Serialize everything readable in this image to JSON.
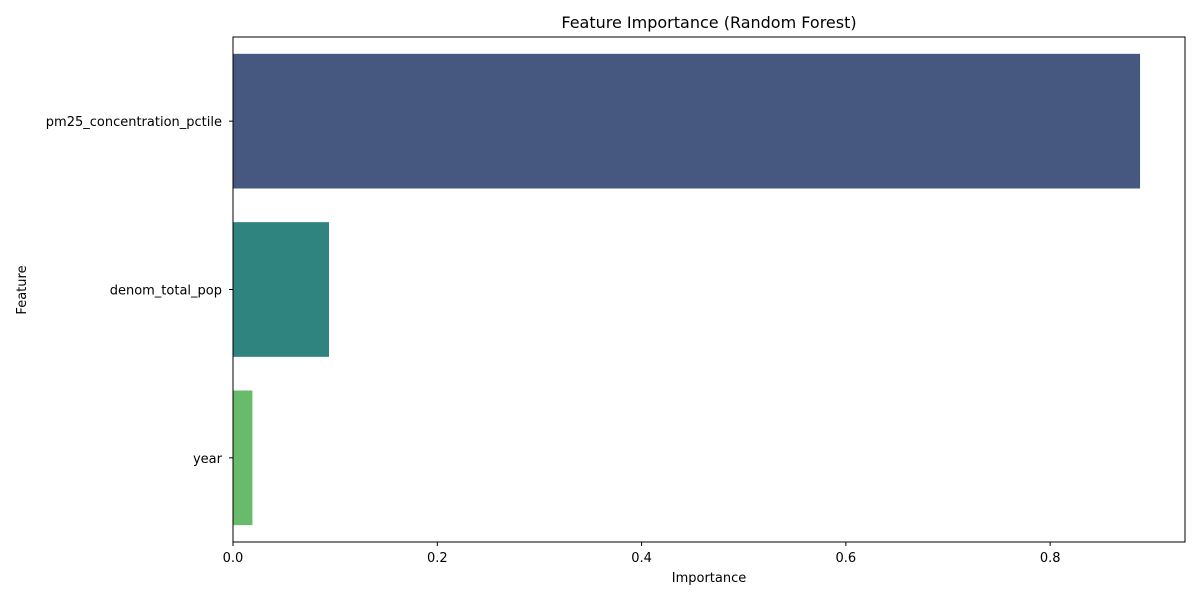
{
  "chart_data": {
    "type": "bar",
    "orientation": "horizontal",
    "title": "Feature Importance (Random Forest)",
    "xlabel": "Importance",
    "ylabel": "Feature",
    "categories": [
      "pm25_concentration_pctile",
      "denom_total_pop",
      "year"
    ],
    "values": [
      0.888,
      0.094,
      0.019
    ],
    "colors": [
      "#46587f",
      "#2f8480",
      "#68bb6b"
    ],
    "xlim": [
      0,
      0.932
    ],
    "xticks": [
      0.0,
      0.2,
      0.4,
      0.6,
      0.8
    ],
    "xtick_labels": [
      "0.0",
      "0.2",
      "0.4",
      "0.6",
      "0.8"
    ],
    "grid": false,
    "legend": "none"
  }
}
